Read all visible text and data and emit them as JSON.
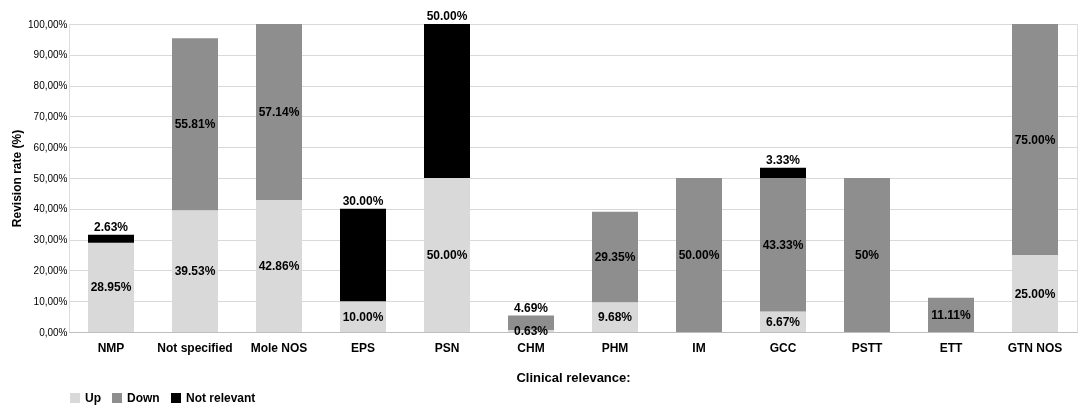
{
  "chart_data": {
    "type": "bar",
    "stacked": true,
    "xlabel": "Clinical relevance:",
    "ylabel": "Revision rate (%)",
    "categories": [
      "NMP",
      "Not specified",
      "Mole NOS",
      "EPS",
      "PSN",
      "CHM",
      "PHM",
      "IM",
      "GCC",
      "PSTT",
      "ETT",
      "GTN NOS"
    ],
    "series": [
      {
        "name": "Up",
        "color": "#d9d9d9",
        "values": [
          28.95,
          39.53,
          42.86,
          10.0,
          50.0,
          0.63,
          9.68,
          null,
          6.67,
          null,
          null,
          25.0
        ],
        "value_labels": [
          "28.95%",
          "39.53%",
          "42.86%",
          "10.00%",
          "50.00%",
          "0.63%",
          "9.68%",
          null,
          "6.67%",
          null,
          null,
          "25.00%"
        ]
      },
      {
        "name": "Down",
        "color": "#8e8e8e",
        "values": [
          null,
          55.81,
          57.14,
          null,
          null,
          4.69,
          29.35,
          50.0,
          43.33,
          50.0,
          11.11,
          75.0
        ],
        "value_labels": [
          null,
          "55.81%",
          "57.14%",
          null,
          null,
          "4.69%",
          "29.35%",
          "50.00%",
          "43.33%",
          "50%",
          "11.11%",
          "75.00%"
        ]
      },
      {
        "name": "Not relevant",
        "color": "#000000",
        "values": [
          2.63,
          null,
          null,
          30.0,
          50.0,
          null,
          null,
          null,
          3.33,
          null,
          null,
          null
        ],
        "value_labels": [
          "2.63%",
          null,
          null,
          "30.00%",
          "50.00%",
          null,
          null,
          null,
          "3.33%",
          null,
          null,
          null
        ]
      }
    ],
    "ylim": [
      0,
      100
    ],
    "yticks": [
      {
        "value": 0,
        "label": "0,00%"
      },
      {
        "value": 10,
        "label": "10,00%"
      },
      {
        "value": 20,
        "label": "20,00%"
      },
      {
        "value": 30,
        "label": "30,00%"
      },
      {
        "value": 40,
        "label": "40,00%"
      },
      {
        "value": 50,
        "label": "50,00%"
      },
      {
        "value": 60,
        "label": "60,00%"
      },
      {
        "value": 70,
        "label": "70,00%"
      },
      {
        "value": 80,
        "label": "80,00%"
      },
      {
        "value": 90,
        "label": "90,00%"
      },
      {
        "value": 100,
        "label": "100,00%"
      }
    ],
    "grid": "y",
    "legend": "bottom"
  }
}
